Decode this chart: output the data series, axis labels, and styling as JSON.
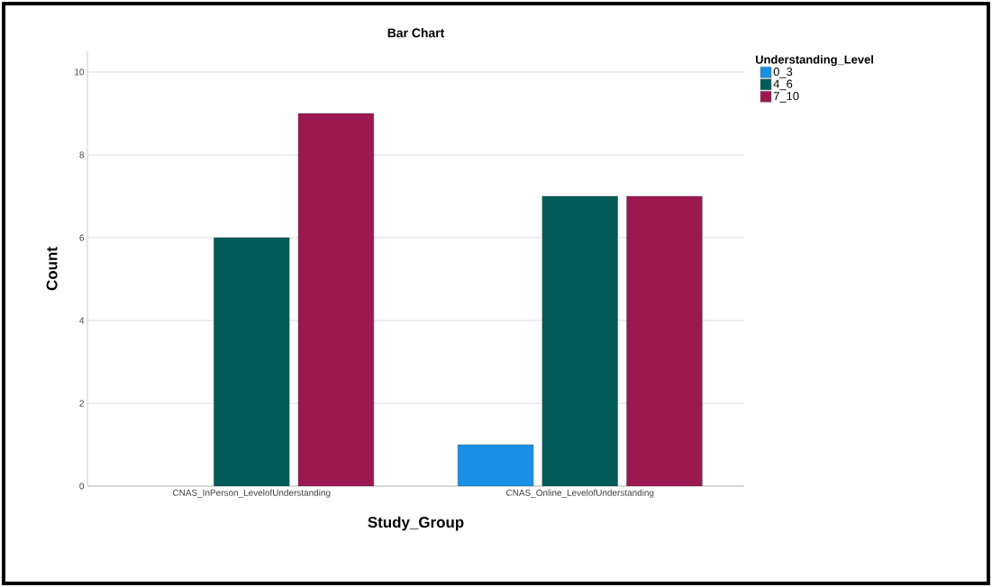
{
  "chart_data": {
    "type": "bar",
    "title": "Bar Chart",
    "xlabel": "Study_Group",
    "ylabel": "Count",
    "legend_title": "Understanding_Level",
    "categories": [
      "CNAS_InPerson_LevelofUnderstanding",
      "CNAS_Online_LevelofUnderstanding"
    ],
    "series": [
      {
        "name": "0_3",
        "color": "#1790e6",
        "values": [
          null,
          1
        ]
      },
      {
        "name": "4_6",
        "color": "#035b5a",
        "values": [
          6,
          7
        ]
      },
      {
        "name": "7_10",
        "color": "#9c1850",
        "values": [
          9,
          7
        ]
      }
    ],
    "ylim": [
      0,
      10.5
    ],
    "yticks": [
      0,
      2,
      4,
      6,
      8,
      10
    ],
    "grid": "y",
    "legend": "top right"
  }
}
